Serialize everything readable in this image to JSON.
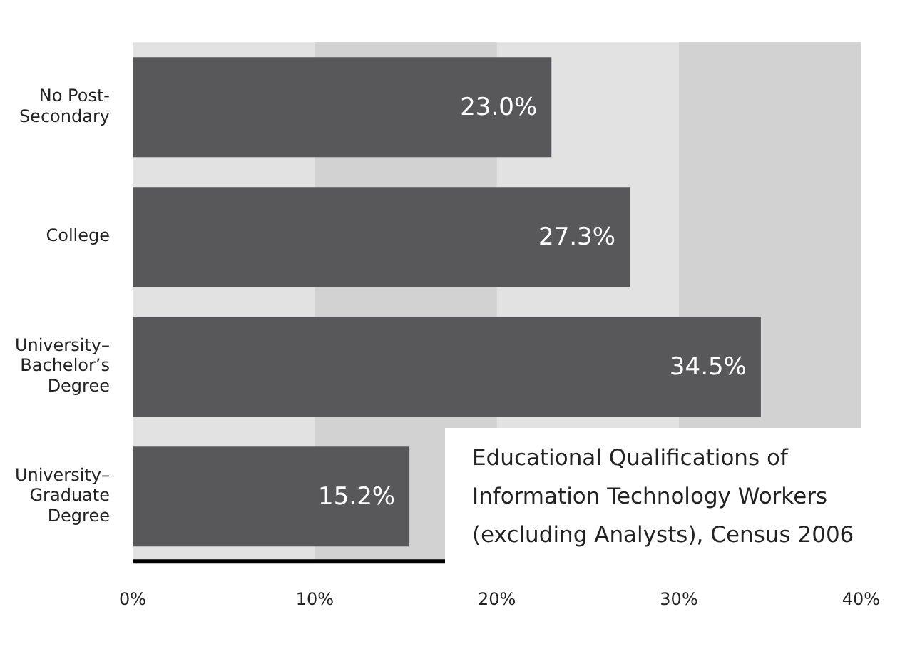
{
  "chart_data": {
    "type": "bar",
    "orientation": "horizontal",
    "title": "Educational Qualifications of Information Technology Workers (excluding Analysts), Census 2006",
    "categories": [
      "No Post-Secondary",
      "College",
      "University–Bachelor’s Degree",
      "University–Graduate Degree"
    ],
    "values": [
      23.0,
      27.3,
      34.5,
      15.2
    ],
    "value_labels": [
      "23.0%",
      "27.3%",
      "34.5%",
      "15.2%"
    ],
    "color": "#58585a",
    "xlim": [
      0,
      40
    ],
    "xticks": [
      {
        "value": 0,
        "label": "0%"
      },
      {
        "value": 10,
        "label": "10%"
      },
      {
        "value": 20,
        "label": "20%"
      },
      {
        "value": 30,
        "label": "30%"
      },
      {
        "value": 40,
        "label": "40%"
      }
    ],
    "bands": [
      {
        "axis": "x",
        "from": 10,
        "to": 20,
        "color": "#d2d2d2"
      },
      {
        "axis": "x",
        "from": 30,
        "to": 40,
        "color": "#d2d2d2"
      }
    ],
    "grid": false,
    "legend": false
  }
}
